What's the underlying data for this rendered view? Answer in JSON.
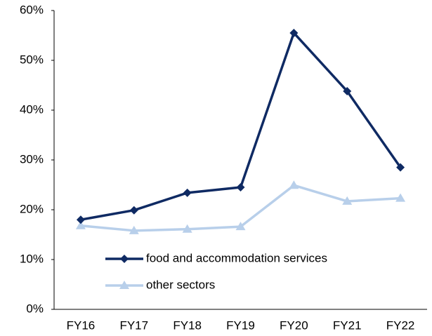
{
  "chart_data": {
    "type": "line",
    "categories": [
      "FY16",
      "FY17",
      "FY18",
      "FY19",
      "FY20",
      "FY21",
      "FY22"
    ],
    "series": [
      {
        "name": "food and accommodation services",
        "color": "#0f2a63",
        "marker": "diamond",
        "values": [
          18.0,
          19.9,
          23.4,
          24.5,
          55.5,
          43.8,
          28.5
        ]
      },
      {
        "name": "other sectors",
        "color": "#b8cfea",
        "marker": "triangle",
        "values": [
          16.8,
          15.8,
          16.1,
          16.6,
          24.9,
          21.7,
          22.3
        ]
      }
    ],
    "ylim": [
      0,
      60
    ],
    "yticks": [
      {
        "value": 0,
        "label": "0%"
      },
      {
        "value": 10,
        "label": "10%"
      },
      {
        "value": 20,
        "label": "20%"
      },
      {
        "value": 30,
        "label": "30%"
      },
      {
        "value": 40,
        "label": "40%"
      },
      {
        "value": 50,
        "label": "50%"
      },
      {
        "value": 60,
        "label": "60%"
      }
    ],
    "grid": false
  }
}
